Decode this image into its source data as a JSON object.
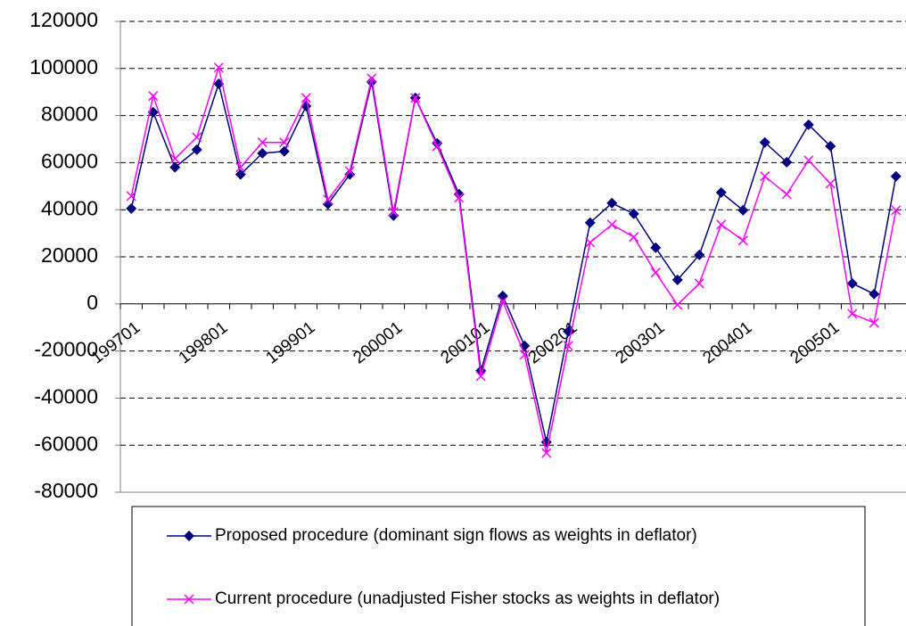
{
  "chart_data": {
    "type": "line",
    "categories": [
      "199701",
      null,
      null,
      null,
      "199801",
      null,
      null,
      null,
      "199901",
      null,
      null,
      null,
      "200001",
      null,
      null,
      null,
      "200101",
      null,
      null,
      null,
      "200201",
      null,
      null,
      null,
      "200301",
      null,
      null,
      null,
      "200401",
      null,
      null,
      null,
      "200501",
      null,
      null,
      null
    ],
    "series": [
      {
        "name": "Proposed procedure (dominant sign flows as weights in deflator)",
        "color": "#000080",
        "marker": "diamond",
        "values": [
          40500,
          81400,
          58000,
          65500,
          93500,
          55000,
          64000,
          64800,
          84000,
          42400,
          55000,
          94300,
          37500,
          87500,
          68200,
          46600,
          -28400,
          3400,
          -17800,
          -58700,
          -11700,
          34500,
          42800,
          38300,
          23900,
          10200,
          20800,
          47300,
          39800,
          68600,
          60200,
          76100,
          67000,
          8700,
          4200,
          54200
        ]
      },
      {
        "name": "Current procedure (unadjusted Fisher stocks as weights in deflator)",
        "color": "#ff00ff",
        "marker": "x",
        "values": [
          45800,
          88300,
          61700,
          70800,
          100400,
          58000,
          68600,
          68600,
          87500,
          44300,
          56400,
          95800,
          39000,
          87500,
          67000,
          45100,
          -30700,
          1100,
          -21600,
          -63300,
          -17800,
          26100,
          33700,
          28400,
          13300,
          -400,
          8700,
          33700,
          26900,
          54200,
          46600,
          61000,
          51100,
          -4200,
          -8000,
          39800
        ]
      }
    ],
    "ylim": [
      -80000,
      120000
    ],
    "yticks": [
      -80000,
      -60000,
      -40000,
      -20000,
      0,
      20000,
      40000,
      60000,
      80000,
      100000,
      120000
    ],
    "grid": true
  }
}
